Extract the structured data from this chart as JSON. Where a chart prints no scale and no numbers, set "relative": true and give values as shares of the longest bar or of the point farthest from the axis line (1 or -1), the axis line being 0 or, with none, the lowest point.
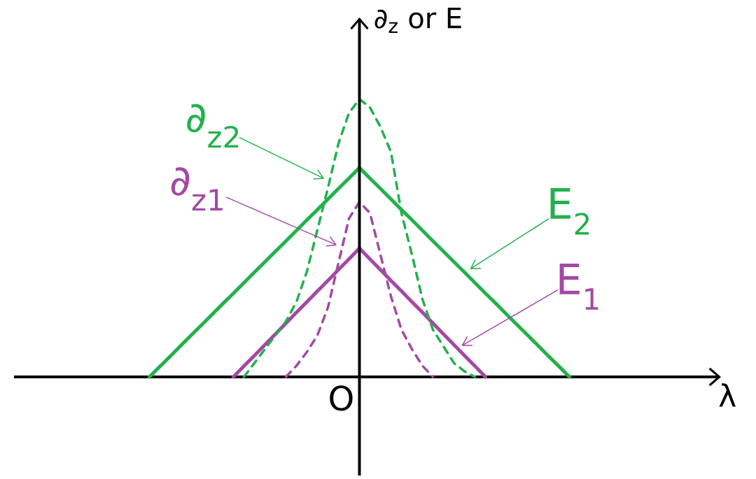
{
  "chart_data": {
    "type": "line",
    "xlabel": "λ",
    "ylabel": "∂$_{z}$ or E",
    "relative": true,
    "categories": [
      null,
      null,
      null,
      null,
      null,
      null,
      null,
      null,
      null,
      null,
      null,
      null,
      null,
      null,
      null,
      null,
      null,
      null,
      null,
      null,
      null,
      null,
      null,
      null,
      null,
      null,
      null,
      null,
      null,
      null,
      null,
      null,
      null,
      null,
      null,
      null,
      null,
      null,
      null,
      null,
      null
    ],
    "series": [
      {
        "name": "E$_{2}$",
        "color": "#22b14c",
        "line_style": "solid",
        "values": [
          0,
          0.038,
          0.075,
          0.113,
          0.151,
          0.188,
          0.226,
          0.264,
          0.301,
          0.339,
          0.377,
          0.414,
          0.452,
          0.489,
          0.527,
          0.565,
          0.602,
          0.64,
          0.678,
          0.715,
          0.753,
          0.715,
          0.678,
          0.64,
          0.602,
          0.565,
          0.527,
          0.489,
          0.452,
          0.414,
          0.377,
          0.339,
          0.301,
          0.264,
          0.226,
          0.188,
          0.151,
          0.113,
          0.075,
          0.038,
          0
        ]
      },
      {
        "name": "E$_{1}$",
        "color": "#a349a4",
        "line_style": "solid",
        "values": [
          null,
          null,
          null,
          null,
          null,
          null,
          null,
          null,
          0,
          0.039,
          0.077,
          0.116,
          0.154,
          0.193,
          0.232,
          0.27,
          0.309,
          0.347,
          0.386,
          0.424,
          0.463,
          0.424,
          0.386,
          0.347,
          0.309,
          0.27,
          0.232,
          0.193,
          0.154,
          0.116,
          0.077,
          0.039,
          0,
          null,
          null,
          null,
          null,
          null,
          null,
          null,
          null
        ]
      },
      {
        "name": "∂$_{z2}$",
        "color": "#22b14c",
        "line_style": "dashed",
        "values": [
          null,
          null,
          null,
          null,
          null,
          null,
          null,
          null,
          null,
          0,
          0.05,
          0.1,
          0.15,
          0.2,
          0.27,
          0.38,
          0.53,
          0.68,
          0.84,
          0.95,
          1,
          0.97,
          0.9,
          0.81,
          0.59,
          0.44,
          0.28,
          0.17,
          0.11,
          0.05,
          0.02,
          0,
          null,
          null,
          null,
          null,
          null,
          null,
          null,
          null,
          null
        ]
      },
      {
        "name": "∂$_{z1}$",
        "color": "#a349a4",
        "line_style": "dashed",
        "values": [
          null,
          null,
          null,
          null,
          null,
          null,
          null,
          null,
          null,
          null,
          null,
          null,
          null,
          0,
          0.04,
          0.09,
          0.15,
          0.25,
          0.41,
          0.57,
          0.63,
          0.59,
          0.44,
          0.29,
          0.17,
          0.1,
          0.04,
          0,
          null,
          null,
          null,
          null,
          null,
          null,
          null,
          null,
          null,
          null,
          null,
          null,
          null
        ]
      }
    ],
    "annotations": [
      "O"
    ]
  }
}
